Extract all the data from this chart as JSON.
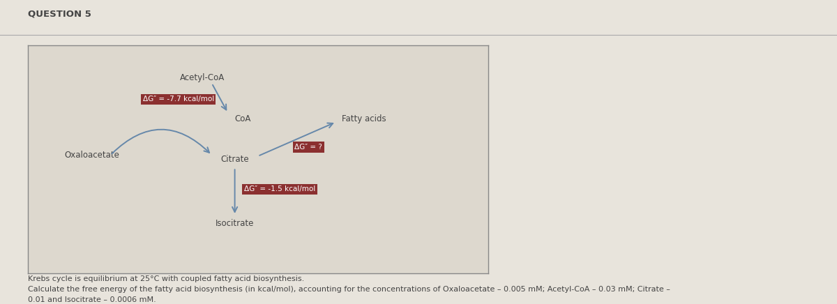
{
  "title": "QUESTION 5",
  "background_color": "#e8e4dc",
  "box_bg": "#ddd8ce",
  "box_border": "#888888",
  "fig_bg": "#e8e4dc",
  "label_acetyl_coa": "Acetyl-CoA",
  "label_coa": "CoA",
  "label_fatty_acids": "Fatty acids",
  "label_oxaloacetate": "Oxaloacetate",
  "label_citrate": "Citrate",
  "label_isocitrate": "Isocitrate",
  "label_ag1": "ΔG″ = -7.7 kcal/mol",
  "label_ag2": "ΔG″ = -1.5 kcal/mol",
  "label_ag3": "ΔG″ = ?",
  "red_box_color": "#8b3030",
  "arrow_color": "#6688aa",
  "text_color_dark": "#444444",
  "text_white": "#ffffff",
  "footnote_line1": "Krebs cycle is equilibrium at 25°C with coupled fatty acid biosynthesis.",
  "footnote_line2": "Calculate the free energy of the fatty acid biosynthesis (in kcal/mol), accounting for the concentrations of Oxaloacetate – 0.005 mM; Acetyl-CoA – 0.03 mM; Citrate –",
  "footnote_line3": "0.01 and Isocitrate – 0.0006 mM."
}
